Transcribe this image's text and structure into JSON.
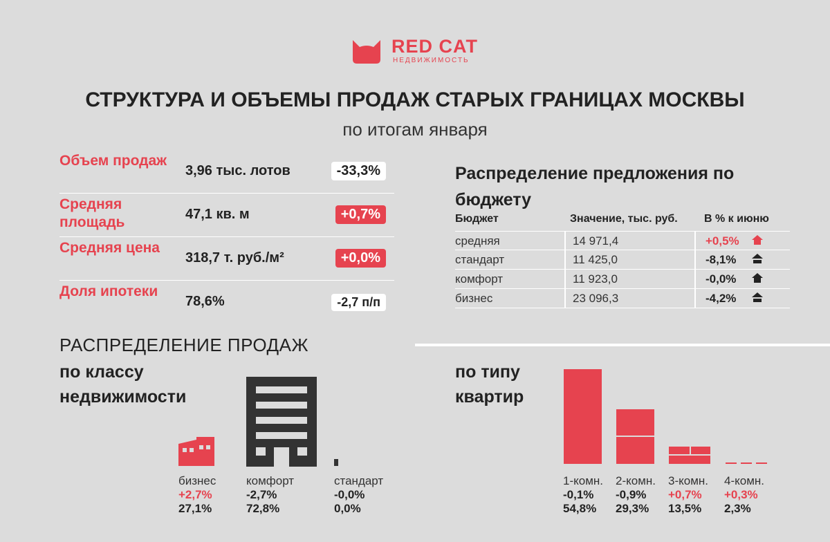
{
  "logo": {
    "brand": "RED CAT",
    "sub": "НЕДВИЖИМОСТЬ"
  },
  "title": "СТРУКТУРА И ОБЪЕМЫ ПРОДАЖ СТАРЫХ ГРАНИЦАХ МОСКВЫ",
  "subtitle": "по итогам января",
  "kpis": [
    {
      "label": "Объем продаж",
      "value": "3,96 тыс. лотов",
      "change": "-33,3%",
      "style": "white"
    },
    {
      "label": "Средняя площадь",
      "value": "47,1 кв. м",
      "change": "+0,7%",
      "style": "red"
    },
    {
      "label": "Средняя цена",
      "value": "318,7 т. руб./м²",
      "change": "+0,0%",
      "style": "red"
    },
    {
      "label": "Доля ипотеки",
      "value": "78,6%",
      "change": "-2,7 п/п",
      "style": "white"
    }
  ],
  "budget": {
    "title": "Распределение предложения по бюджету",
    "headers": [
      "Бюджет",
      "Значение, тыс. руб.",
      "В % к июню"
    ],
    "rows": [
      {
        "segment": "средняя",
        "value": "14 971,4",
        "change": "+0,5%",
        "trend": "up"
      },
      {
        "segment": "стандарт",
        "value": "11 425,0",
        "change": "-8,1%",
        "trend": "down"
      },
      {
        "segment": "комфорт",
        "value": "11 923,0",
        "change": "-0,0%",
        "trend": "down"
      },
      {
        "segment": "бизнес",
        "value": "23 096,3",
        "change": "-4,2%",
        "trend": "down"
      }
    ]
  },
  "distribution": {
    "title": "РАСПРЕДЕЛЕНИЕ ПРОДАЖ",
    "by_class_title": "по классу недвижимости",
    "by_type_title": "по типу квартир",
    "classes": [
      {
        "name": "бизнес",
        "change": "+2,7%",
        "share": "27,1%",
        "share_value": 27.1
      },
      {
        "name": "комфорт",
        "change": "-2,7%",
        "share": "72,8%",
        "share_value": 72.8
      },
      {
        "name": "стандарт",
        "change": "-0,0%",
        "share": "0,0%",
        "share_value": 0.0
      }
    ],
    "types": [
      {
        "name": "1-комн.",
        "change": "-0,1%",
        "share": "54,8%",
        "share_value": 54.8
      },
      {
        "name": "2-комн.",
        "change": "-0,9%",
        "share": "29,3%",
        "share_value": 29.3
      },
      {
        "name": "3-комн.",
        "change": "+0,7%",
        "share": "13,5%",
        "share_value": 13.5
      },
      {
        "name": "4-комн.",
        "change": "+0,3%",
        "share": "2,3%",
        "share_value": 2.3
      }
    ]
  },
  "colors": {
    "accent": "#e6434f",
    "dark": "#333333",
    "background": "#dcdcdc"
  }
}
